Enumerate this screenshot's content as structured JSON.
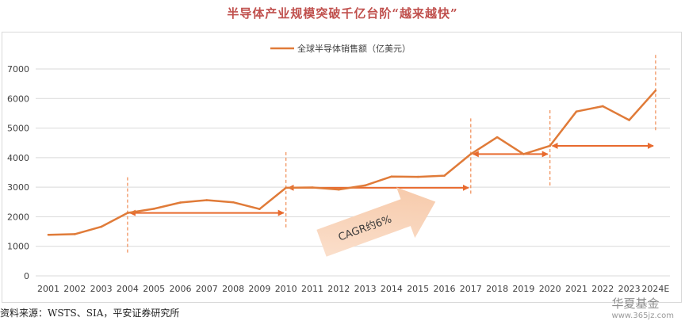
{
  "title": "半导体产业规模突破千亿台阶“越来越快”",
  "source": "资料来源：WSTS、SIA，平安证券研究所",
  "watermark": {
    "main": "华夏基金",
    "url": "www.365jz.com"
  },
  "colors": {
    "line": "#e07b39",
    "arrow": "#e86a2e",
    "dash": "#f08a52",
    "grid": "#d9d9d9",
    "title": "#c0504d"
  },
  "chart_data": {
    "type": "line",
    "title": "半导体产业规模突破千亿台阶“越来越快”",
    "categories": [
      "2001",
      "2002",
      "2003",
      "2004",
      "2005",
      "2006",
      "2007",
      "2008",
      "2009",
      "2010",
      "2011",
      "2012",
      "2013",
      "2014",
      "2015",
      "2016",
      "2017",
      "2018",
      "2019",
      "2020",
      "2021",
      "2022",
      "2023",
      "2024E"
    ],
    "series": [
      {
        "name": "全球半导体销售额（亿美元）",
        "values": [
          1390,
          1410,
          1660,
          2130,
          2270,
          2480,
          2560,
          2490,
          2260,
          2980,
          2990,
          2920,
          3060,
          3360,
          3350,
          3390,
          4120,
          4690,
          4120,
          4400,
          5560,
          5740,
          5270,
          6270
        ]
      }
    ],
    "yticks": [
      0,
      1000,
      2000,
      3000,
      4000,
      5000,
      6000,
      7000
    ],
    "ylim": [
      0,
      7000
    ],
    "grid": true,
    "legend": "top-center",
    "annotation": "CAGR约6%",
    "milestones": [
      "2004",
      "2010",
      "2017",
      "2020",
      "2024E"
    ]
  }
}
